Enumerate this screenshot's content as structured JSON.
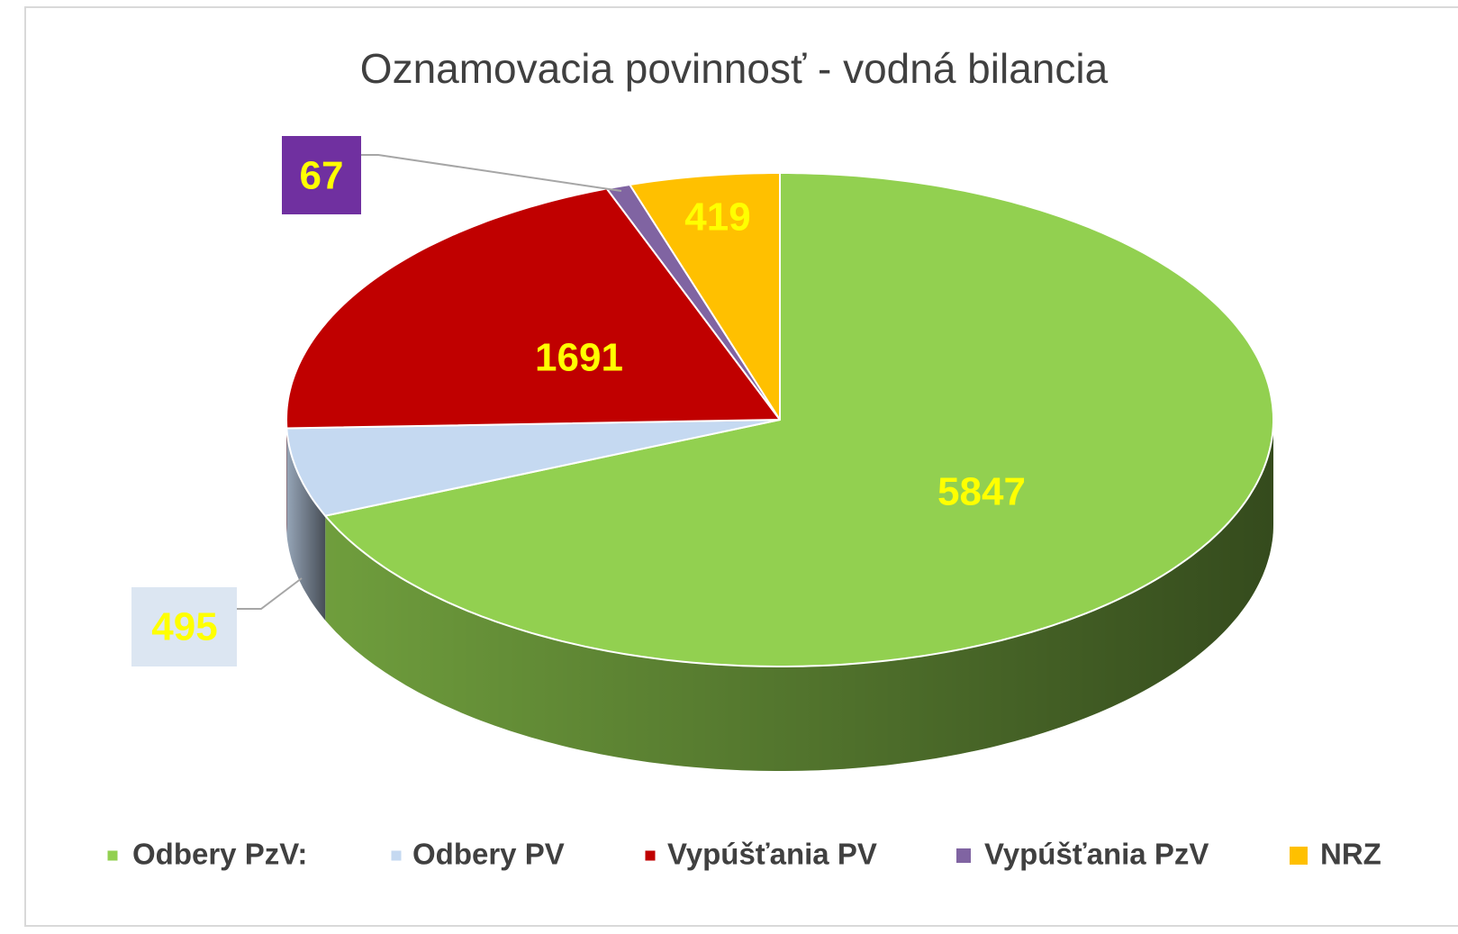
{
  "chart_data": {
    "type": "pie3d",
    "title": "Oznamovacia povinnosť - vodná bilancia",
    "categories": [
      "Odbery PzV:",
      "Odbery PV",
      "Vypúšťania PV",
      "Vypúšťania PzV",
      "NRZ"
    ],
    "values": [
      5847,
      495,
      1691,
      67,
      419
    ],
    "colors": [
      "#92d050",
      "#c5d9f1",
      "#c00000",
      "#8064a2",
      "#ffc000"
    ],
    "legend": "bottom"
  }
}
